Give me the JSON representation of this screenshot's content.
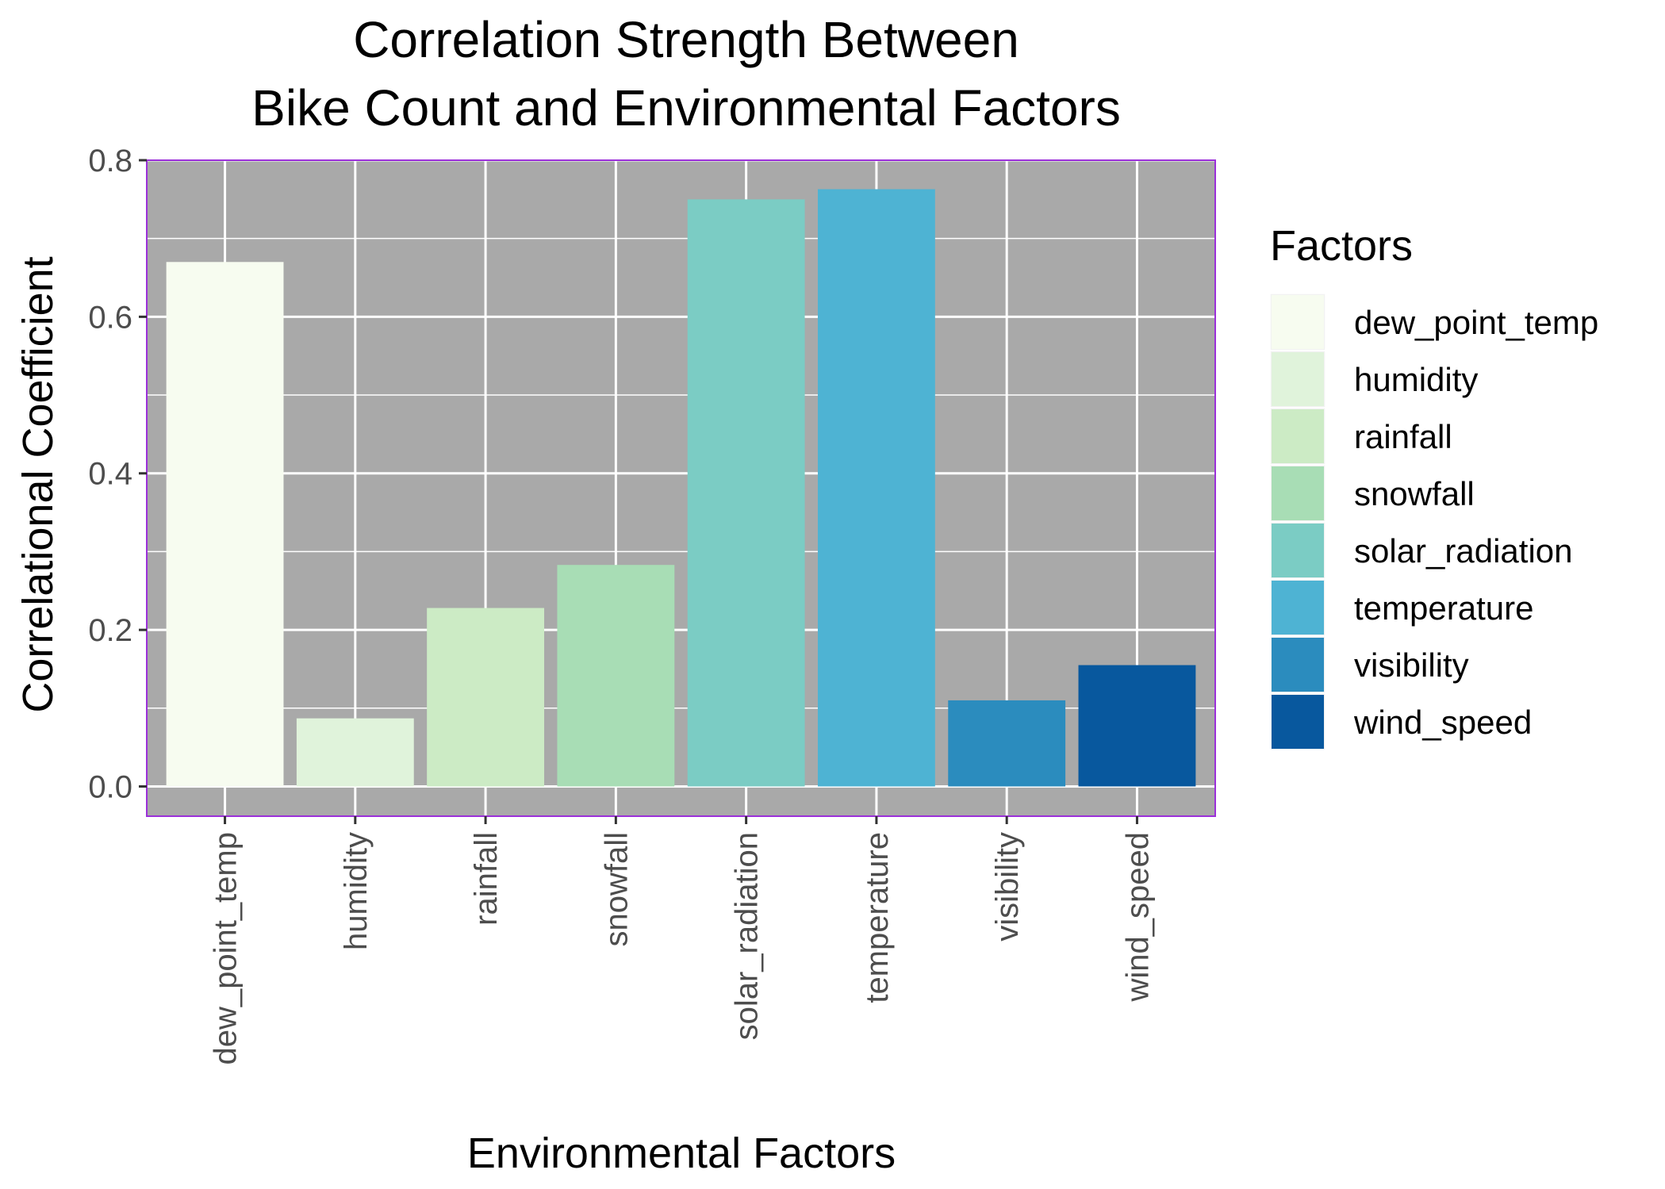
{
  "chart_data": {
    "type": "bar",
    "title_lines": [
      "Correlation Strength Between",
      "Bike Count and Environmental Factors"
    ],
    "xlabel": "Environmental Factors",
    "ylabel": "Correlational Coefficient",
    "ylim": [
      -0.038,
      0.8
    ],
    "yticks": [
      0.0,
      0.2,
      0.4,
      0.6,
      0.8
    ],
    "ytick_labels": [
      "0.0",
      "0.2",
      "0.4",
      "0.6",
      "0.8"
    ],
    "categories": [
      "dew_point_temp",
      "humidity",
      "rainfall",
      "snowfall",
      "solar_radiation",
      "temperature",
      "visibility",
      "wind_speed"
    ],
    "values": [
      0.67,
      0.087,
      0.228,
      0.283,
      0.75,
      0.763,
      0.11,
      0.155
    ],
    "colors": [
      "#f7fcf0",
      "#e0f3db",
      "#ccebc5",
      "#a8ddb5",
      "#7bccc4",
      "#4eb3d3",
      "#2b8cbe",
      "#08589e"
    ],
    "legend": {
      "title": "Factors",
      "placement": "right",
      "entries": [
        "dew_point_temp",
        "humidity",
        "rainfall",
        "snowfall",
        "solar_radiation",
        "temperature",
        "visibility",
        "wind_speed"
      ]
    },
    "panel_background": "#a9a9a9",
    "grid_color": "#ffffff",
    "panel_border_color": "#9b30d9",
    "grid": true
  }
}
